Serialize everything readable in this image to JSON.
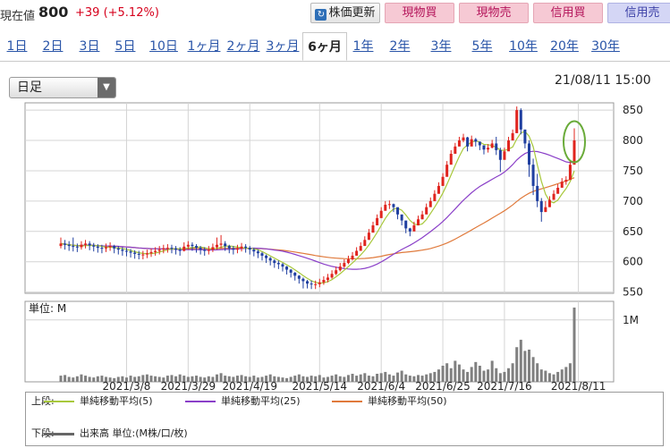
{
  "header": {
    "current_label": "現在値",
    "current_price": "800",
    "change": "+39 (+5.12%)",
    "refresh_button": "株価更新",
    "genbutsu_kai": "現物買",
    "genbutsu_uri": "現物売",
    "shinyo_kai": "信用買",
    "shinyo_uri": "信用売"
  },
  "tabs": [
    "1日",
    "2日",
    "3日",
    "5日",
    "10日",
    "1ヶ月",
    "2ヶ月",
    "3ヶ月",
    "6ヶ月",
    "1年",
    "2年",
    "3年",
    "5年",
    "10年",
    "20年",
    "30年"
  ],
  "active_tab": "6ヶ月",
  "select": {
    "value": "日足"
  },
  "chart_date": "21/08/11 15:00",
  "colors": {
    "up": "#e0241e",
    "down": "#1f3fa0",
    "ma5": "#a8c83c",
    "ma25": "#8a3fc8",
    "ma50": "#e07a3c",
    "volume": "#808080",
    "grid": "#d4d4d4",
    "highlight": "#6aab3a"
  },
  "legend": {
    "upper_label": "上段:",
    "ma5": "単純移動平均(5)",
    "ma25": "単純移動平均(25)",
    "ma50": "単純移動平均(50)",
    "lower_label": "下段:",
    "volume": "出来高 単位:(M株/口/枚)"
  },
  "chart_data": {
    "type": "candlestick",
    "price_axis": {
      "ylim": [
        548,
        862
      ],
      "ticks": [
        550,
        600,
        650,
        700,
        750,
        800,
        850
      ]
    },
    "volume_axis": {
      "unit_label": "単位: M",
      "ylim": [
        0,
        1.3
      ],
      "ticks": [
        {
          "value": 1.0,
          "label": "1M"
        }
      ]
    },
    "x_labels": [
      {
        "index": 16,
        "label": "2021/3/8"
      },
      {
        "index": 31,
        "label": "2021/3/29"
      },
      {
        "index": 46,
        "label": "2021/4/19"
      },
      {
        "index": 63,
        "label": "2021/5/14"
      },
      {
        "index": 78,
        "label": "2021/6/4"
      },
      {
        "index": 93,
        "label": "2021/6/25"
      },
      {
        "index": 108,
        "label": "2021/7/16"
      },
      {
        "index": 126,
        "label": "2021/8/11"
      }
    ],
    "closes": [
      630,
      628,
      626,
      625,
      624,
      628,
      630,
      627,
      625,
      623,
      622,
      624,
      626,
      622,
      620,
      618,
      617,
      615,
      613,
      612,
      612,
      614,
      616,
      618,
      620,
      622,
      623,
      622,
      620,
      618,
      625,
      628,
      626,
      623,
      620,
      618,
      620,
      624,
      628,
      630,
      626,
      622,
      620,
      622,
      625,
      623,
      620,
      617,
      614,
      610,
      606,
      602,
      598,
      596,
      592,
      587,
      582,
      577,
      572,
      568,
      564,
      563,
      563,
      566,
      570,
      574,
      580,
      586,
      592,
      598,
      604,
      610,
      618,
      626,
      636,
      648,
      660,
      672,
      684,
      694,
      695,
      690,
      678,
      668,
      655,
      650,
      660,
      670,
      678,
      690,
      700,
      712,
      725,
      740,
      760,
      778,
      790,
      800,
      805,
      790,
      802,
      798,
      792,
      785,
      788,
      795,
      784,
      768,
      782,
      800,
      812,
      850,
      818,
      795,
      760,
      725,
      700,
      682,
      690,
      702,
      712,
      722,
      732,
      735,
      760,
      800
    ],
    "highs": [
      640,
      636,
      634,
      640,
      630,
      634,
      636,
      634,
      631,
      629,
      628,
      630,
      632,
      628,
      626,
      624,
      623,
      621,
      619,
      618,
      618,
      620,
      622,
      624,
      626,
      628,
      629,
      628,
      626,
      624,
      632,
      634,
      632,
      629,
      626,
      624,
      626,
      630,
      640,
      644,
      634,
      628,
      626,
      628,
      631,
      629,
      626,
      623,
      620,
      616,
      612,
      608,
      604,
      602,
      598,
      593,
      588,
      583,
      578,
      574,
      570,
      569,
      569,
      572,
      576,
      580,
      586,
      592,
      598,
      604,
      610,
      616,
      624,
      632,
      642,
      654,
      666,
      678,
      690,
      700,
      701,
      696,
      684,
      674,
      661,
      656,
      666,
      676,
      684,
      696,
      706,
      718,
      731,
      746,
      766,
      784,
      796,
      806,
      811,
      806,
      808,
      804,
      798,
      791,
      794,
      801,
      806,
      788,
      788,
      806,
      818,
      856,
      853,
      808,
      800,
      770,
      745,
      705,
      700,
      708,
      718,
      728,
      738,
      741,
      766,
      820
    ],
    "lows": [
      622,
      620,
      618,
      617,
      616,
      620,
      622,
      619,
      617,
      615,
      614,
      616,
      618,
      614,
      612,
      610,
      609,
      607,
      605,
      604,
      604,
      606,
      608,
      610,
      612,
      614,
      615,
      614,
      612,
      610,
      617,
      620,
      618,
      615,
      612,
      610,
      612,
      616,
      620,
      622,
      618,
      614,
      612,
      614,
      617,
      615,
      612,
      609,
      606,
      602,
      598,
      594,
      590,
      588,
      584,
      579,
      574,
      569,
      564,
      556,
      556,
      555,
      555,
      558,
      562,
      566,
      572,
      578,
      584,
      590,
      596,
      602,
      610,
      618,
      628,
      640,
      652,
      664,
      676,
      686,
      687,
      682,
      670,
      660,
      647,
      642,
      652,
      662,
      670,
      682,
      692,
      704,
      717,
      732,
      752,
      770,
      782,
      792,
      797,
      782,
      794,
      790,
      784,
      777,
      780,
      787,
      776,
      748,
      774,
      792,
      804,
      842,
      810,
      787,
      740,
      710,
      690,
      666,
      682,
      694,
      704,
      714,
      724,
      727,
      752,
      772
    ],
    "volumes": [
      0.1,
      0.11,
      0.08,
      0.07,
      0.09,
      0.12,
      0.1,
      0.08,
      0.07,
      0.09,
      0.1,
      0.08,
      0.07,
      0.06,
      0.08,
      0.09,
      0.07,
      0.1,
      0.08,
      0.09,
      0.11,
      0.12,
      0.1,
      0.09,
      0.08,
      0.07,
      0.1,
      0.11,
      0.09,
      0.12,
      0.1,
      0.08,
      0.09,
      0.1,
      0.08,
      0.07,
      0.09,
      0.08,
      0.12,
      0.14,
      0.1,
      0.09,
      0.08,
      0.1,
      0.11,
      0.09,
      0.08,
      0.1,
      0.07,
      0.08,
      0.1,
      0.12,
      0.09,
      0.08,
      0.07,
      0.06,
      0.08,
      0.1,
      0.12,
      0.09,
      0.08,
      0.1,
      0.09,
      0.11,
      0.07,
      0.08,
      0.1,
      0.12,
      0.09,
      0.08,
      0.11,
      0.13,
      0.1,
      0.12,
      0.14,
      0.1,
      0.09,
      0.13,
      0.14,
      0.16,
      0.12,
      0.1,
      0.15,
      0.18,
      0.12,
      0.1,
      0.09,
      0.11,
      0.1,
      0.12,
      0.14,
      0.16,
      0.2,
      0.26,
      0.3,
      0.22,
      0.34,
      0.28,
      0.2,
      0.16,
      0.24,
      0.32,
      0.26,
      0.18,
      0.2,
      0.34,
      0.22,
      0.14,
      0.16,
      0.22,
      0.3,
      0.56,
      0.68,
      0.5,
      0.52,
      0.4,
      0.3,
      0.2,
      0.18,
      0.14,
      0.12,
      0.16,
      0.2,
      0.24,
      0.3,
      1.2
    ]
  }
}
